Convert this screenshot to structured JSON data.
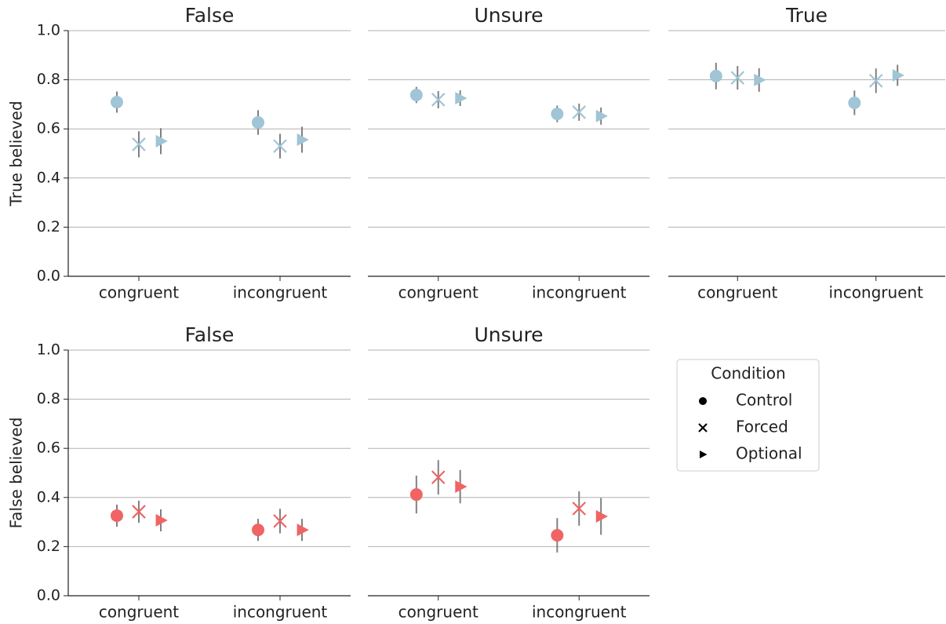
{
  "chart_data": [
    {
      "type": "point",
      "title": "False",
      "ylabel": "True believed",
      "categories": [
        "congruent",
        "incongruent"
      ],
      "series": [
        {
          "marker": "circle",
          "color": "#9fc5d6",
          "values": [
            0.709,
            0.626
          ],
          "errors": [
            0.043,
            0.05
          ]
        },
        {
          "marker": "x",
          "color": "#9fc5d6",
          "values": [
            0.537,
            0.53
          ],
          "errors": [
            0.053,
            0.05
          ]
        },
        {
          "marker": "triangle",
          "color": "#9fc5d6",
          "values": [
            0.55,
            0.556
          ],
          "errors": [
            0.053,
            0.053
          ]
        }
      ],
      "ylim": [
        0,
        1
      ],
      "yticks": [
        {
          "value": 0,
          "label": "0.0"
        },
        {
          "value": 0.2,
          "label": "0.2"
        },
        {
          "value": 0.4,
          "label": "0.4"
        },
        {
          "value": 0.6,
          "label": "0.6"
        },
        {
          "value": 0.8,
          "label": "0.8"
        },
        {
          "value": 1,
          "label": "1.0"
        }
      ],
      "grid": true
    },
    {
      "type": "point",
      "title": "Unsure",
      "categories": [
        "congruent",
        "incongruent"
      ],
      "series": [
        {
          "marker": "circle",
          "color": "#9fc5d6",
          "values": [
            0.738,
            0.661
          ],
          "errors": [
            0.033,
            0.034
          ]
        },
        {
          "marker": "x",
          "color": "#9fc5d6",
          "values": [
            0.719,
            0.668
          ],
          "errors": [
            0.035,
            0.035
          ]
        },
        {
          "marker": "triangle",
          "color": "#9fc5d6",
          "values": [
            0.725,
            0.652
          ],
          "errors": [
            0.032,
            0.035
          ]
        }
      ],
      "ylim": [
        0,
        1
      ],
      "yticks": [
        0,
        0.2,
        0.4,
        0.6,
        0.8,
        1
      ],
      "grid": true
    },
    {
      "type": "point",
      "title": "True",
      "categories": [
        "congruent",
        "incongruent"
      ],
      "series": [
        {
          "marker": "circle",
          "color": "#9fc5d6",
          "values": [
            0.815,
            0.706
          ],
          "errors": [
            0.054,
            0.05
          ]
        },
        {
          "marker": "x",
          "color": "#9fc5d6",
          "values": [
            0.808,
            0.796
          ],
          "errors": [
            0.048,
            0.05
          ]
        },
        {
          "marker": "triangle",
          "color": "#9fc5d6",
          "values": [
            0.799,
            0.818
          ],
          "errors": [
            0.048,
            0.043
          ]
        }
      ],
      "ylim": [
        0,
        1
      ],
      "yticks": [
        0,
        0.2,
        0.4,
        0.6,
        0.8,
        1
      ],
      "grid": true
    },
    {
      "type": "point",
      "title": "False",
      "ylabel": "False believed",
      "categories": [
        "congruent",
        "incongruent"
      ],
      "series": [
        {
          "marker": "circle",
          "color": "#f06464",
          "values": [
            0.326,
            0.268
          ],
          "errors": [
            0.045,
            0.045
          ]
        },
        {
          "marker": "x",
          "color": "#f06464",
          "values": [
            0.342,
            0.304
          ],
          "errors": [
            0.045,
            0.05
          ]
        },
        {
          "marker": "triangle",
          "color": "#f06464",
          "values": [
            0.307,
            0.268
          ],
          "errors": [
            0.045,
            0.045
          ]
        }
      ],
      "ylim": [
        0,
        1
      ],
      "yticks": [
        {
          "value": 0,
          "label": "0.0"
        },
        {
          "value": 0.2,
          "label": "0.2"
        },
        {
          "value": 0.4,
          "label": "0.4"
        },
        {
          "value": 0.6,
          "label": "0.6"
        },
        {
          "value": 0.8,
          "label": "0.8"
        },
        {
          "value": 1,
          "label": "1.0"
        }
      ],
      "grid": true
    },
    {
      "type": "point",
      "title": "Unsure",
      "legend_title": "Condition",
      "categories": [
        "congruent",
        "incongruent"
      ],
      "series": [
        {
          "name": "Control",
          "marker": "circle",
          "color": "#f06464",
          "values": [
            0.412,
            0.246
          ],
          "errors": [
            0.077,
            0.07
          ]
        },
        {
          "name": "Forced",
          "marker": "x",
          "color": "#f06464",
          "values": [
            0.482,
            0.355
          ],
          "errors": [
            0.07,
            0.07
          ]
        },
        {
          "name": "Optional",
          "marker": "triangle",
          "color": "#f06464",
          "values": [
            0.444,
            0.323
          ],
          "errors": [
            0.068,
            0.075
          ]
        }
      ],
      "ylim": [
        0,
        1
      ],
      "yticks": [
        0,
        0.2,
        0.4,
        0.6,
        0.8,
        1
      ],
      "grid": true
    }
  ]
}
